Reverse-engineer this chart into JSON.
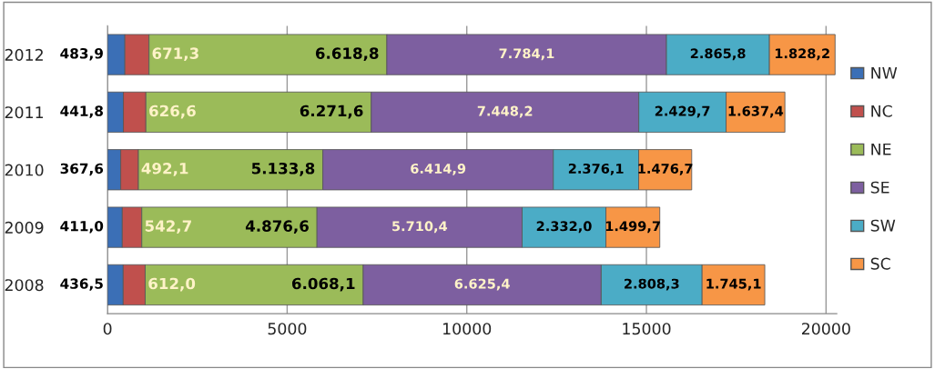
{
  "chart_data": {
    "type": "bar",
    "orientation": "horizontal",
    "stacked": true,
    "categories": [
      "2012",
      "2011",
      "2010",
      "2009",
      "2008"
    ],
    "series": [
      {
        "name": "NW",
        "color": "#3b6fb6",
        "values": [
          483.9,
          441.8,
          367.6,
          411.0,
          436.5
        ],
        "value_labels": [
          "483,9",
          "441,8",
          "367,6",
          "411,0",
          "436,5"
        ]
      },
      {
        "name": "NC",
        "color": "#c0504d",
        "values": [
          671.3,
          626.6,
          492.1,
          542.7,
          612.0
        ],
        "value_labels": [
          "671,3",
          "626,6",
          "492,1",
          "542,7",
          "612,0"
        ]
      },
      {
        "name": "NE",
        "color": "#9bbb59",
        "values": [
          6618.8,
          6271.6,
          5133.8,
          4876.6,
          6068.1
        ],
        "value_labels": [
          "6.618,8",
          "6.271,6",
          "5.133,8",
          "4.876,6",
          "6.068,1"
        ]
      },
      {
        "name": "SE",
        "color": "#7d5fa0",
        "values": [
          7784.1,
          7448.2,
          6414.9,
          5710.4,
          6625.4
        ],
        "value_labels": [
          "7.784,1",
          "7.448,2",
          "6.414,9",
          "5.710,4",
          "6.625,4"
        ]
      },
      {
        "name": "SW",
        "color": "#4bacc6",
        "values": [
          2865.8,
          2429.7,
          2376.1,
          2332.0,
          2808.3
        ],
        "value_labels": [
          "2.865,8",
          "2.429,7",
          "2.376,1",
          "2.332,0",
          "2.808,3"
        ]
      },
      {
        "name": "SC",
        "color": "#f79646",
        "values": [
          1828.2,
          1637.4,
          1476.7,
          1499.7,
          1745.1
        ],
        "value_labels": [
          "1.828,2",
          "1.637,4",
          "1.476,7",
          "1.499,7",
          "1.745,1"
        ]
      }
    ],
    "xlim": [
      0,
      20300
    ],
    "xticks": [
      0,
      5000,
      10000,
      15000,
      20000
    ],
    "grid": "x",
    "legend": "right"
  }
}
